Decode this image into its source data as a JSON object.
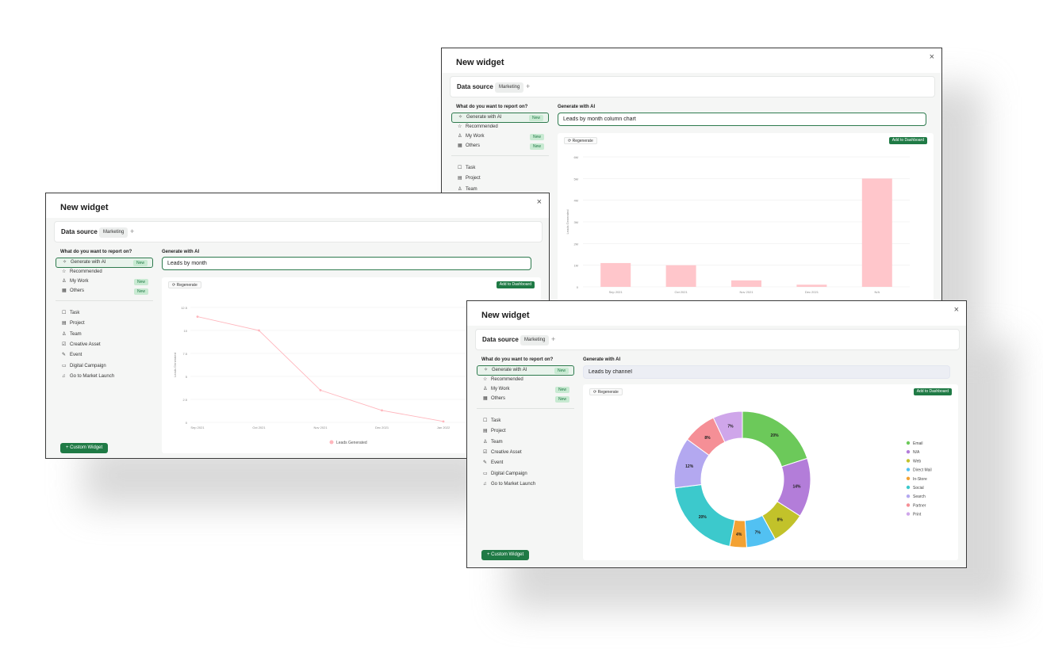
{
  "common": {
    "title": "New widget",
    "close": "×",
    "data_source_label": "Data source",
    "data_source_value": "Marketing",
    "add_source": "+",
    "question": "What do you want to report on?",
    "generate_label": "Generate with AI",
    "regenerate": "Regenerate",
    "add_to_dashboard": "Add to Dashboard",
    "custom_widget": "Custom Widget",
    "badge_new": "New"
  },
  "sidebar": {
    "top": [
      {
        "label": "Generate with AI",
        "icon": "sparkle-icon",
        "new": true,
        "active": true
      },
      {
        "label": "Recommended",
        "icon": "star-icon",
        "new": false
      },
      {
        "label": "My Work",
        "icon": "user-icon",
        "new": true
      },
      {
        "label": "Others",
        "icon": "grid-icon",
        "new": true
      }
    ],
    "types": [
      {
        "label": "Task",
        "icon": "task-icon"
      },
      {
        "label": "Project",
        "icon": "project-icon"
      },
      {
        "label": "Team",
        "icon": "team-icon"
      },
      {
        "label": "Creative Asset",
        "icon": "creative-asset-icon"
      },
      {
        "label": "Event",
        "icon": "event-icon"
      },
      {
        "label": "Digital Campaign",
        "icon": "campaign-icon"
      },
      {
        "label": "Go to Market Launch",
        "icon": "launch-icon"
      }
    ]
  },
  "windows": {
    "back": {
      "prompt": "Leads by month column chart"
    },
    "left": {
      "prompt": "Leads by month"
    },
    "front": {
      "prompt": "Leads by channel"
    }
  },
  "chart_data": [
    {
      "type": "bar",
      "window": "back",
      "categories": [
        "Sep 2021",
        "Oct 2021",
        "Nov 2021",
        "Dec 2021",
        "N/A"
      ],
      "values": [
        1.1,
        1.0,
        0.3,
        0.1,
        5.0
      ],
      "ylim": [
        0,
        6
      ],
      "yticks": [
        "0",
        "1M",
        "2M",
        "3M",
        "4M",
        "5M",
        "6M"
      ],
      "ylabel": "Leads Generated",
      "color": "#ffc6cb",
      "grid": true
    },
    {
      "type": "line",
      "window": "left",
      "categories": [
        "Sep 2021",
        "Oct 2021",
        "Nov 2021",
        "Dec 2021",
        "Jan 2022"
      ],
      "values": [
        11.5,
        10.0,
        3.5,
        1.3,
        0.1
      ],
      "ylim": [
        0,
        12.5
      ],
      "yticks": [
        "0",
        "2.5",
        "5",
        "7.5",
        "10",
        "12.5"
      ],
      "ylabel": "Leads Generated",
      "series": [
        {
          "name": "Leads Generated",
          "values": [
            11.5,
            10.0,
            3.5,
            1.3,
            0.1
          ]
        }
      ],
      "color": "#ffb6bd",
      "legend": "bottom",
      "grid": true
    },
    {
      "type": "pie",
      "window": "front",
      "donut": true,
      "slices": [
        {
          "name": "Email",
          "value": 20,
          "label": "20%",
          "color": "#6cc95a"
        },
        {
          "name": "N/A",
          "value": 14,
          "label": "14%",
          "color": "#b37dd9"
        },
        {
          "name": "Web",
          "value": 8,
          "label": "8%",
          "color": "#c2c22a"
        },
        {
          "name": "Direct Mail",
          "value": 7,
          "label": "7%",
          "color": "#52c1f2"
        },
        {
          "name": "In-Store",
          "value": 4,
          "label": "4%",
          "color": "#f3a233"
        },
        {
          "name": "Social",
          "value": 20,
          "label": "20%",
          "color": "#3cc9cc"
        },
        {
          "name": "Search",
          "value": 12,
          "label": "12%",
          "color": "#b3a8f0"
        },
        {
          "name": "Partner",
          "value": 8,
          "label": "8%",
          "color": "#f58f96"
        },
        {
          "name": "Print",
          "value": 7,
          "label": "7%",
          "color": "#cfa6ea"
        }
      ],
      "legend": "right"
    }
  ]
}
